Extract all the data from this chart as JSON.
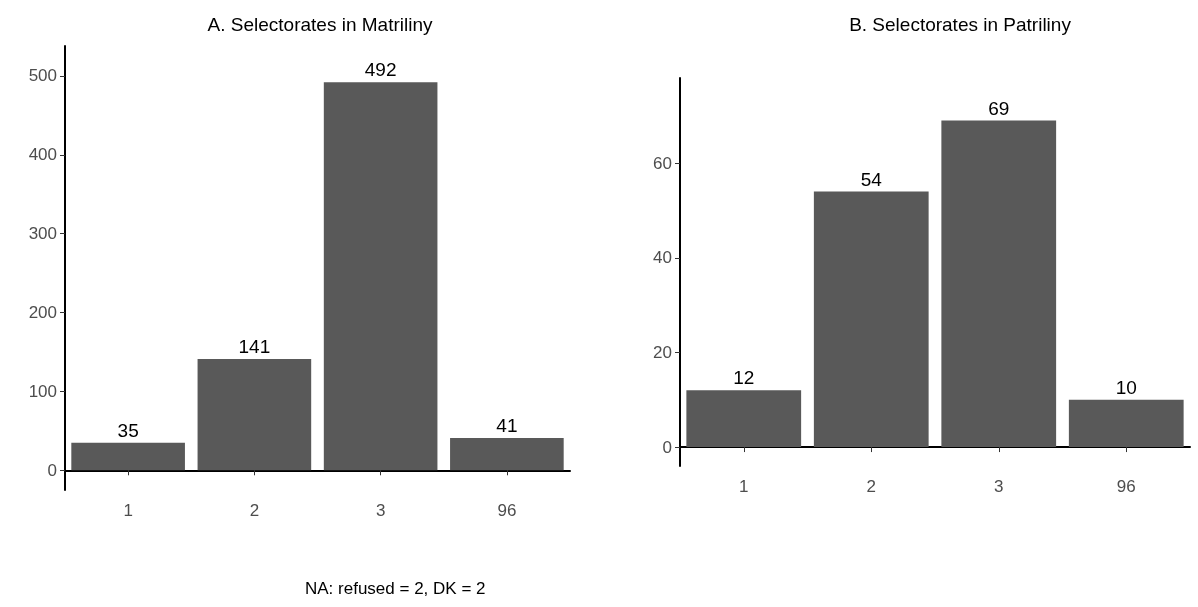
{
  "chart_data": [
    {
      "type": "bar",
      "title": "A. Selectorates in Matriliny",
      "categories": [
        "1",
        "2",
        "3",
        "96"
      ],
      "values": [
        35,
        141,
        492,
        41
      ],
      "color": "#595959",
      "ylim": [
        -25,
        538
      ],
      "yticks": [
        0,
        100,
        200,
        300,
        400,
        500
      ],
      "data_labels": true,
      "grid": false,
      "annotations": [
        "NA: refused = 2, DK = 2"
      ]
    },
    {
      "type": "bar",
      "title": "B. Selectorates in Patriliny",
      "categories": [
        "1",
        "2",
        "3",
        "96"
      ],
      "values": [
        12,
        54,
        69,
        10
      ],
      "color": "#595959",
      "ylim": [
        -4,
        78
      ],
      "yticks": [
        0,
        20,
        40,
        60
      ],
      "data_labels": true,
      "grid": false
    }
  ]
}
